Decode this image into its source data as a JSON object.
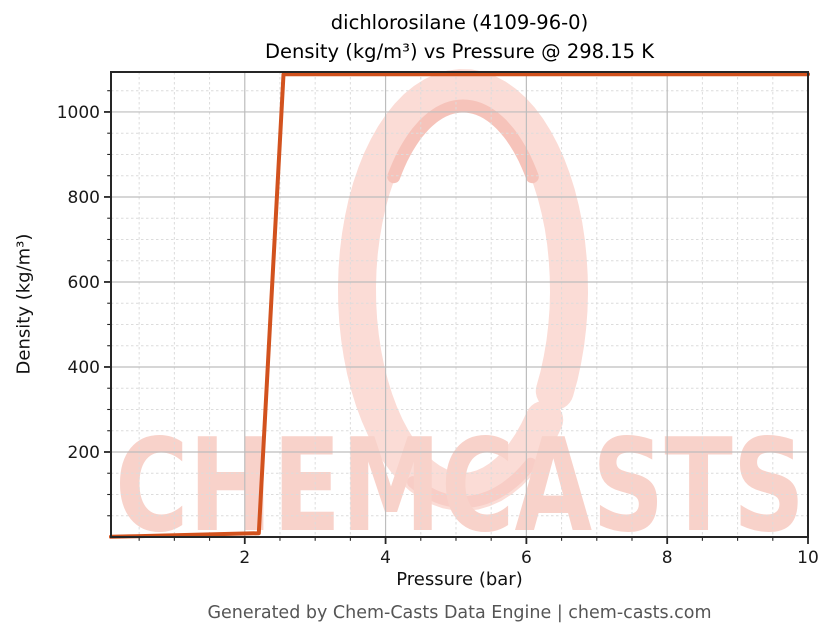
{
  "title": {
    "line1": "dichlorosilane (4109-96-0)",
    "line2": "Density (kg/m³) vs Pressure @ 298.15 K"
  },
  "footer": "Generated by Chem-Casts Data Engine | chem-casts.com",
  "watermark": {
    "text": "CHEMCASTS",
    "ring_color": "#fbdcd6",
    "accent_color": "#f6c3ba",
    "text_color": "#f8d2ca"
  },
  "chart_data": {
    "type": "line",
    "title": "dichlorosilane (4109-96-0) — Density (kg/m³) vs Pressure @ 298.15 K",
    "xlabel": "Pressure (bar)",
    "ylabel": "Density (kg/m³)",
    "xlim": [
      0.1,
      10
    ],
    "ylim": [
      0,
      1094
    ],
    "xticks": [
      2,
      4,
      6,
      8,
      10
    ],
    "yticks": [
      200,
      400,
      600,
      800,
      1000
    ],
    "x_minor_step": 0.5,
    "y_minor_step": 50,
    "grid": true,
    "legend": false,
    "series": [
      {
        "name": "Density",
        "color": "#d2521e",
        "x": [
          0.1,
          0.45,
          0.8,
          1.15,
          1.5,
          1.85,
          2.2,
          2.55,
          2.9,
          3.25,
          3.6,
          3.95,
          4.3,
          4.65,
          5.0,
          5.35,
          5.7,
          6.05,
          6.4,
          6.75,
          7.1,
          7.45,
          7.8,
          8.15,
          8.5,
          8.85,
          9.2,
          9.55,
          9.9,
          10.0
        ],
        "y": [
          0.4,
          1.8,
          3.3,
          4.7,
          6.1,
          7.5,
          9.0,
          1088.5,
          1088.5,
          1088.5,
          1088.5,
          1088.5,
          1088.5,
          1088.5,
          1088.5,
          1088.5,
          1088.5,
          1088.5,
          1088.5,
          1088.5,
          1088.5,
          1088.5,
          1088.5,
          1088.5,
          1088.5,
          1088.5,
          1088.5,
          1088.5,
          1088.5,
          1088.5
        ]
      }
    ]
  }
}
